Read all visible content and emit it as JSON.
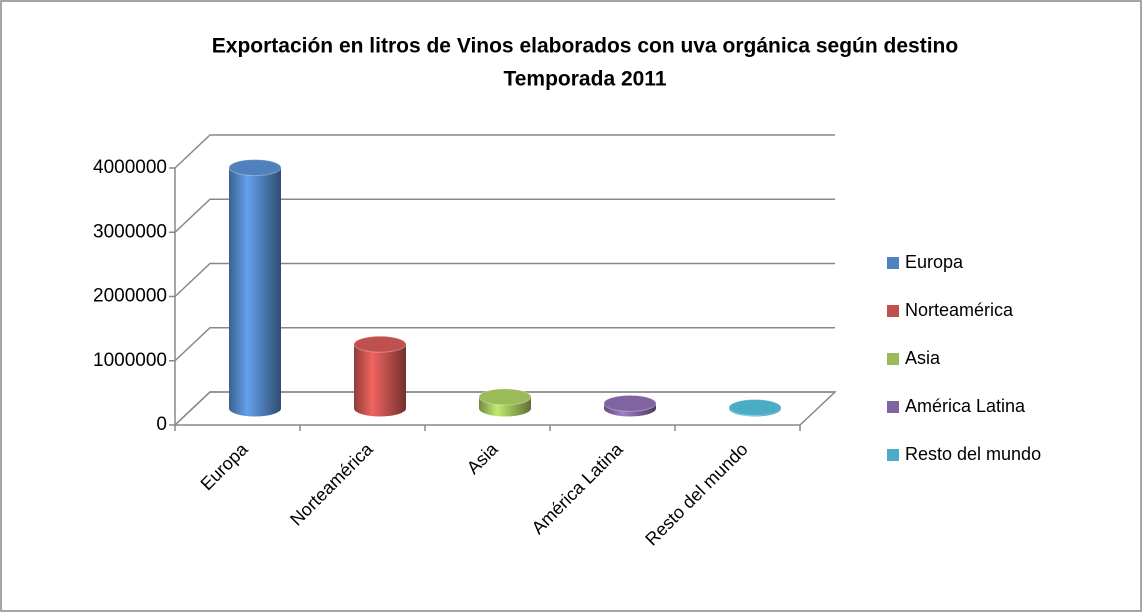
{
  "chart_data": {
    "type": "bar3d",
    "title": "Exportación en litros de Vinos elaborados con uva orgánica según destino",
    "subtitle": "Temporada 2011",
    "categories": [
      "Europa",
      "Norteamérica",
      "Asia",
      "América Latina",
      "Resto del mundo"
    ],
    "values": [
      3750000,
      1000000,
      180000,
      80000,
      15000
    ],
    "colors": [
      "#4f81bd",
      "#c0504d",
      "#9bbb59",
      "#8064a2",
      "#4bacc6"
    ],
    "ylim": [
      0,
      4000000
    ],
    "yticks": [
      0,
      1000000,
      2000000,
      3000000,
      4000000
    ],
    "grid": true,
    "legend": "right"
  }
}
